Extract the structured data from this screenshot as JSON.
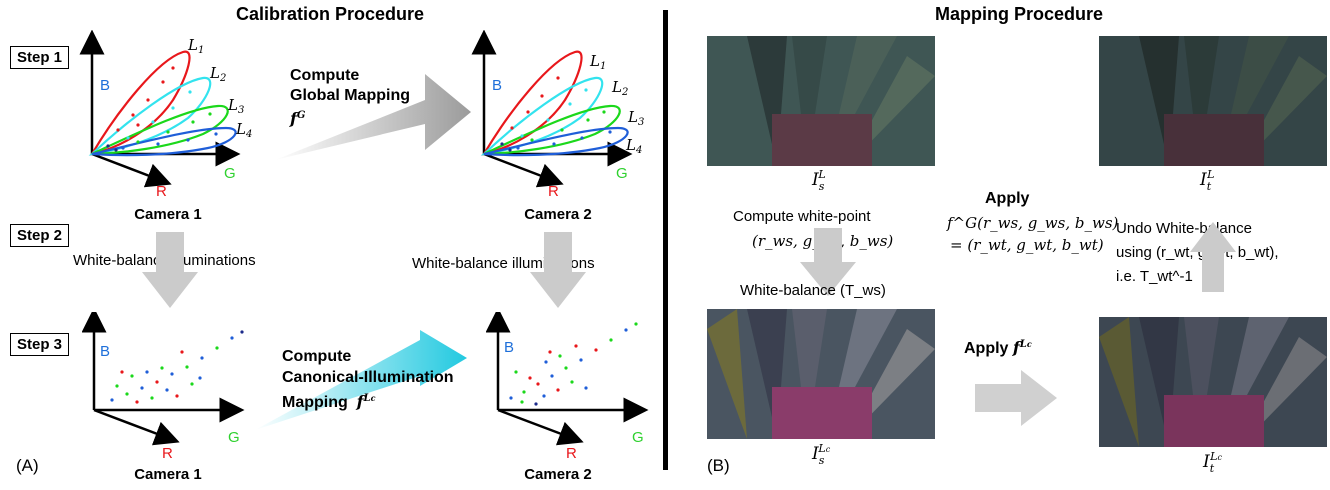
{
  "calibration": {
    "title": "Calibration Procedure",
    "steps": [
      "Step 1",
      "Step 2",
      "Step 3"
    ],
    "camera1": "Camera 1",
    "camera2": "Camera 2",
    "white_balance": "White-balance illuminations",
    "compute_global": [
      "Compute",
      "Global Mapping"
    ],
    "compute_global_sym": "f",
    "compute_global_sup": "G",
    "compute_canonical": [
      "Compute",
      "Canonical-Illumination",
      "Mapping"
    ],
    "compute_canonical_sym": "f",
    "compute_canonical_sup": "L",
    "compute_canonical_supsub": "c",
    "panel_label": "(A)",
    "axes": {
      "B": "B",
      "R": "R",
      "G": "G"
    },
    "illuminants": [
      "L",
      "L",
      "L",
      "L"
    ],
    "illuminant_subs": [
      "1",
      "2",
      "3",
      "4"
    ]
  },
  "mapping": {
    "title": "Mapping Procedure",
    "panel_label": "(B)",
    "is_L": "I",
    "it_L": "I",
    "is_Lc": "I",
    "it_Lc": "I",
    "compute_white": "Compute white-point",
    "ws_tuple": "(r_ws, g_ws, b_ws)",
    "white_balance_T": "White-balance (T_ws)",
    "apply": "Apply",
    "apply_expr_1": "f^G(r_ws, g_ws, b_ws)",
    "apply_expr_2": "= (r_wt, g_wt, b_wt)",
    "undo_1": "Undo White-balance",
    "undo_2": "using (r_wt, g_wt, b_wt),",
    "undo_3": "i.e. T_wt^-1",
    "apply_fLc": "Apply"
  },
  "colors": {
    "red": "#e8171b",
    "cyan": "#33e3ee",
    "green": "#1bd81b",
    "blue": "#1f5ed8",
    "axisB": "#1e6fd9",
    "axisR": "#e8171b",
    "axisG": "#2fd12f",
    "arrowGray": "#c9c9c9"
  }
}
